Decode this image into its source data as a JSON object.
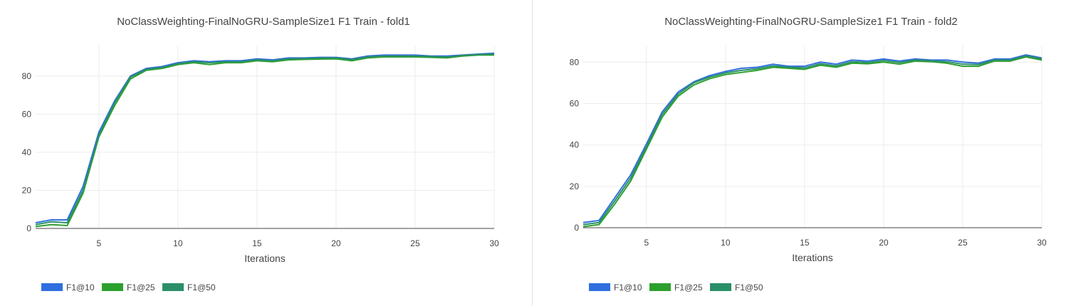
{
  "chart_data": [
    {
      "type": "line",
      "title": "NoClassWeighting-FinalNoGRU-SampleSize1 F1 Train - fold1",
      "xlabel": "Iterations",
      "ylabel": "",
      "xlim": [
        1,
        30
      ],
      "ylim": [
        0,
        96
      ],
      "x_ticks": [
        5,
        10,
        15,
        20,
        25,
        30
      ],
      "y_ticks": [
        0,
        20,
        40,
        60,
        80
      ],
      "grid": true,
      "legend_position": "bottom-left",
      "x": [
        1,
        2,
        3,
        4,
        5,
        6,
        7,
        8,
        9,
        10,
        11,
        12,
        13,
        14,
        15,
        16,
        17,
        18,
        19,
        20,
        21,
        22,
        23,
        24,
        25,
        26,
        27,
        28,
        29,
        30
      ],
      "series": [
        {
          "name": "F1@10",
          "color": "#2f6fdf",
          "values": [
            3,
            4.5,
            4.5,
            22,
            50.5,
            67,
            80,
            84,
            85,
            87,
            88,
            87.5,
            88,
            88,
            89,
            88.5,
            89.5,
            89.5,
            89.8,
            89.8,
            89,
            90.5,
            91,
            91,
            91,
            90.5,
            90.5,
            91,
            91.5,
            92
          ]
        },
        {
          "name": "F1@25",
          "color": "#2ca02c",
          "values": [
            1,
            2,
            1.5,
            18.5,
            48,
            64.5,
            78.5,
            83,
            84,
            86,
            87,
            86,
            87,
            87,
            88,
            87.5,
            88.5,
            88.7,
            88.9,
            89,
            88,
            89.5,
            90,
            90,
            90,
            89.8,
            89.5,
            90.5,
            91,
            91
          ]
        },
        {
          "name": "F1@50",
          "color": "#2a8f68",
          "values": [
            2,
            3.5,
            3,
            20,
            49,
            66,
            79.5,
            83.5,
            84.5,
            86.5,
            87.5,
            87,
            87.5,
            87.5,
            88.5,
            88,
            89,
            89.2,
            89.4,
            89.5,
            88.6,
            90,
            90.5,
            90.5,
            90.5,
            90.2,
            90,
            90.8,
            91.3,
            91.5
          ]
        }
      ]
    },
    {
      "type": "line",
      "title": "NoClassWeighting-FinalNoGRU-SampleSize1 F1 Train - fold2",
      "xlabel": "Iterations",
      "ylabel": "",
      "xlim": [
        1,
        30
      ],
      "ylim": [
        0,
        88
      ],
      "x_ticks": [
        5,
        10,
        15,
        20,
        25,
        30
      ],
      "y_ticks": [
        0,
        20,
        40,
        60,
        80
      ],
      "grid": true,
      "legend_position": "bottom-left",
      "x": [
        1,
        2,
        3,
        4,
        5,
        6,
        7,
        8,
        9,
        10,
        11,
        12,
        13,
        14,
        15,
        16,
        17,
        18,
        19,
        20,
        21,
        22,
        23,
        24,
        25,
        26,
        27,
        28,
        29,
        30
      ],
      "series": [
        {
          "name": "F1@10",
          "color": "#2f6fdf",
          "values": [
            2.5,
            3.5,
            14.5,
            25.5,
            40.5,
            56,
            65.5,
            70.5,
            73.5,
            75.5,
            77,
            77.5,
            79,
            78,
            78,
            80,
            79,
            81,
            80.5,
            81.5,
            80.5,
            81.5,
            81,
            81,
            80,
            79.5,
            81.5,
            81.5,
            83.5,
            82
          ]
        },
        {
          "name": "F1@25",
          "color": "#2ca02c",
          "values": [
            0.5,
            1.5,
            11.5,
            22.5,
            38,
            53.5,
            63.5,
            69,
            72,
            74,
            75,
            76,
            77.5,
            77,
            76.5,
            78.5,
            77.5,
            79.5,
            79.2,
            80,
            79,
            80.5,
            80.2,
            79.5,
            78,
            78,
            80.5,
            80.5,
            82.5,
            81
          ]
        },
        {
          "name": "F1@50",
          "color": "#2a8f68",
          "values": [
            1.5,
            2.5,
            13,
            24,
            39.2,
            54.8,
            64.5,
            70,
            72.8,
            74.8,
            76,
            76.8,
            78.2,
            77.5,
            77.2,
            79.2,
            78.2,
            80.2,
            79.8,
            80.8,
            79.8,
            81,
            80.6,
            80.2,
            79,
            78.8,
            81,
            81,
            83,
            81.5
          ]
        }
      ]
    }
  ]
}
